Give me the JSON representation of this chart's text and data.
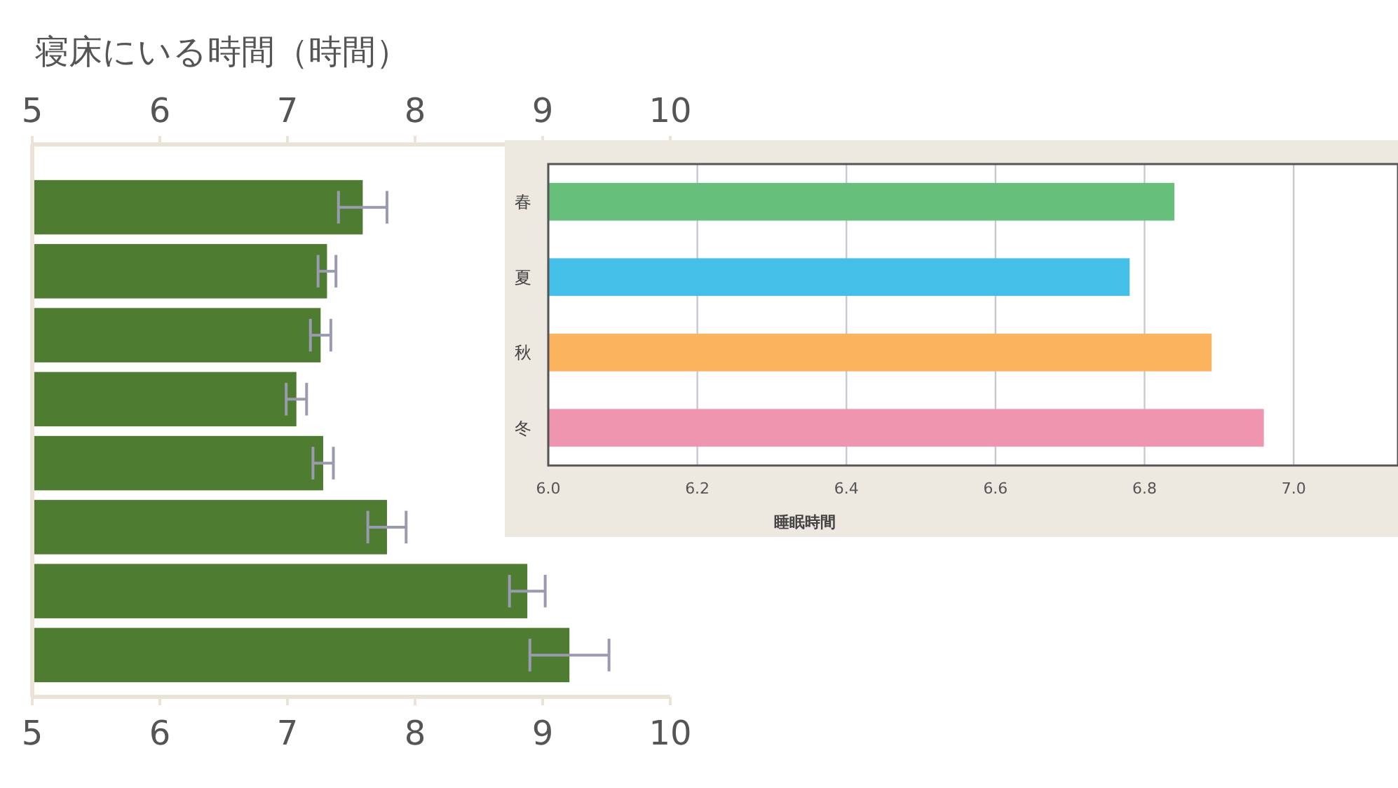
{
  "chart_data": [
    {
      "type": "bar",
      "orientation": "horizontal",
      "title": "寝床にいる時間（時間）",
      "categories": [
        null,
        null,
        null,
        null,
        null,
        null,
        null,
        null
      ],
      "values": [
        7.59,
        7.31,
        7.26,
        7.07,
        7.28,
        7.78,
        8.88,
        9.21
      ],
      "errors": [
        0.19,
        0.07,
        0.08,
        0.08,
        0.08,
        0.15,
        0.14,
        0.31
      ],
      "color": "#4e7c31",
      "xlim": [
        5,
        10
      ],
      "xticks": [
        5,
        6,
        7,
        8,
        9,
        10
      ],
      "x2lim": [
        5,
        10
      ],
      "x2ticks": [
        5,
        6,
        7,
        8,
        9,
        10
      ]
    },
    {
      "type": "bar",
      "orientation": "horizontal",
      "xlabel": "睡眠時間",
      "categories": [
        "春",
        "夏",
        "秋",
        "冬"
      ],
      "values": [
        6.84,
        6.78,
        6.89,
        6.96
      ],
      "colors": [
        "#66bf7a",
        "#44c0e8",
        "#fbb35e",
        "#f095b0"
      ],
      "xlim": [
        6.0,
        7.14
      ],
      "xticks": [
        {
          "value": 6.0,
          "label": "6.0"
        },
        {
          "value": 6.2,
          "label": "6.2"
        },
        {
          "value": 6.4,
          "label": "6.4"
        },
        {
          "value": 6.6,
          "label": "6.6"
        },
        {
          "value": 6.8,
          "label": "6.8"
        },
        {
          "value": 7.0,
          "label": "7.0"
        }
      ],
      "grid": "x"
    }
  ]
}
